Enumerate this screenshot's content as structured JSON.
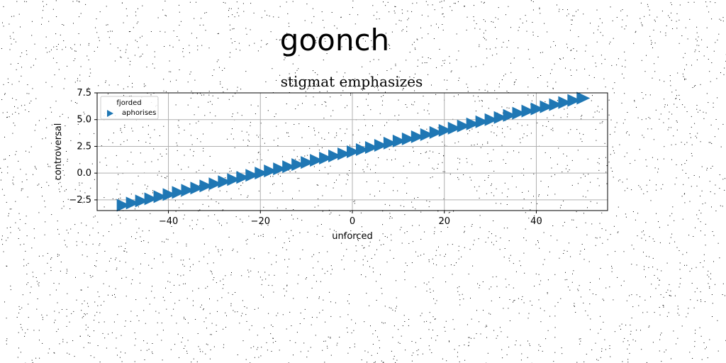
{
  "page": {
    "title": "goonch"
  },
  "chart_data": {
    "type": "scatter",
    "title": "stigmat emphasizes",
    "xlabel": "unforced",
    "ylabel": "controversal",
    "xlim": [
      -55.5,
      55.5
    ],
    "ylim": [
      -3.5,
      7.5
    ],
    "xticks": [
      -40,
      -20,
      0,
      20,
      40
    ],
    "xtick_labels": [
      "−40",
      "−20",
      "0",
      "20",
      "40"
    ],
    "yticks": [
      -2.5,
      0.0,
      2.5,
      5.0,
      7.5
    ],
    "ytick_labels": [
      "−2.5",
      "0.0",
      "2.5",
      "5.0",
      "7.5"
    ],
    "grid": true,
    "legend": {
      "title": "fjorded",
      "placement": "top-left",
      "entries": [
        "aphorises"
      ]
    },
    "marker": "triangle-right",
    "color": "#1f77b4",
    "series": [
      {
        "name": "aphorises",
        "x": [
          -50,
          -48,
          -46,
          -44,
          -42,
          -40,
          -38,
          -36,
          -34,
          -32,
          -30,
          -28,
          -26,
          -24,
          -22,
          -20,
          -18,
          -16,
          -14,
          -12,
          -10,
          -8,
          -6,
          -4,
          -2,
          0,
          2,
          4,
          6,
          8,
          10,
          12,
          14,
          16,
          18,
          20,
          22,
          24,
          26,
          28,
          30,
          32,
          34,
          36,
          38,
          40,
          42,
          44,
          46,
          48,
          50
        ],
        "y": [
          -3.0,
          -2.8,
          -2.6,
          -2.4,
          -2.2,
          -2.0,
          -1.8,
          -1.6,
          -1.4,
          -1.2,
          -1.0,
          -0.8,
          -0.6,
          -0.4,
          -0.2,
          0.0,
          0.2,
          0.4,
          0.6,
          0.8,
          1.0,
          1.2,
          1.4,
          1.6,
          1.8,
          2.0,
          2.2,
          2.4,
          2.6,
          2.8,
          3.0,
          3.2,
          3.4,
          3.6,
          3.8,
          4.0,
          4.2,
          4.4,
          4.6,
          4.8,
          5.0,
          5.2,
          5.4,
          5.6,
          5.8,
          6.0,
          6.2,
          6.4,
          6.6,
          6.8,
          7.0
        ]
      }
    ]
  }
}
